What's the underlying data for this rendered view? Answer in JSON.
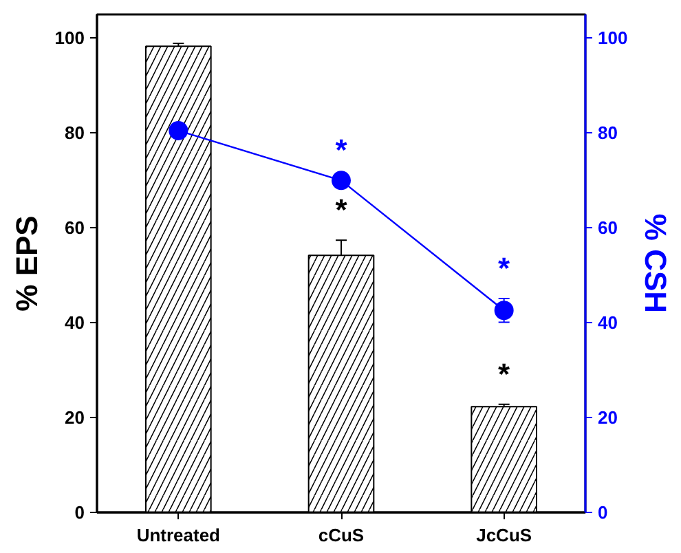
{
  "chart_data": {
    "type": "bar",
    "ylabel": "% EPS",
    "y2label": "% CSH",
    "categories": [
      "Untreated",
      "cCuS",
      "JcCuS"
    ],
    "series": [
      {
        "color": "#000000",
        "values": [
          98.3,
          54.2,
          22.3
        ],
        "errors": [
          0.6,
          3.2,
          0.5
        ]
      },
      {
        "type": "line",
        "axis": "y2",
        "color": "#0000ff",
        "values": [
          80.5,
          70.0,
          42.6
        ],
        "errors": [
          null,
          null,
          2.5
        ]
      }
    ],
    "ylim": [
      0,
      105
    ],
    "yticks": [
      0,
      20,
      40,
      60,
      80,
      100
    ],
    "y2lim": [
      0,
      105
    ],
    "y2ticks": [
      0,
      20,
      40,
      60,
      80,
      100
    ],
    "marker": "circle",
    "grid": false,
    "annotations": [
      "*",
      "*",
      "*",
      "*"
    ]
  }
}
